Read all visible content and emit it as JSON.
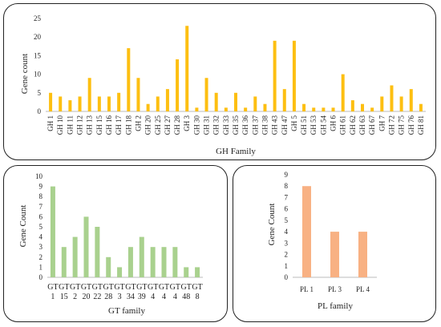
{
  "chart_data": [
    {
      "type": "bar",
      "name": "gh",
      "xlabel": "GH Family",
      "ylabel": "Gene count",
      "ylim": [
        0,
        25
      ],
      "yticks": [
        0,
        5,
        10,
        15,
        20,
        25
      ],
      "color": "#FDBF11",
      "grid": false,
      "categories": [
        "GH 1",
        "GH 10",
        "GH 11",
        "GH 12",
        "GH 13",
        "GH 15",
        "GH 16",
        "GH 17",
        "GH 18",
        "GH 2",
        "GH 20",
        "GH 25",
        "GH 27",
        "GH 28",
        "GH 3",
        "GH 30",
        "GH 31",
        "GH 32",
        "GH 33",
        "GH 35",
        "GH 36",
        "GH 37",
        "GH 38",
        "GH 43",
        "GH 47",
        "GH 5",
        "GH 51",
        "GH 53",
        "GH 54",
        "GH 6",
        "GH 61",
        "GH 62",
        "GH 63",
        "GH 67",
        "GH 7",
        "GH 72",
        "GH 75",
        "GH 76",
        "GH 81"
      ],
      "values": [
        5,
        4,
        3,
        4,
        9,
        4,
        4,
        5,
        17,
        9,
        2,
        4,
        6,
        14,
        23,
        1,
        9,
        5,
        1,
        5,
        1,
        4,
        2,
        19,
        6,
        19,
        2,
        1,
        1,
        1,
        10,
        3,
        2,
        1,
        4,
        7,
        4,
        6,
        2
      ]
    },
    {
      "type": "bar",
      "name": "gt",
      "xlabel": "GT family",
      "ylabel": "Gene Count",
      "ylim": [
        0,
        10
      ],
      "yticks": [
        0,
        1,
        2,
        3,
        4,
        5,
        6,
        7,
        8,
        9,
        10
      ],
      "color": "#A9D18E",
      "grid": false,
      "categories": [
        [
          "GT",
          "1"
        ],
        [
          "GT",
          "15"
        ],
        [
          "GT",
          "2"
        ],
        [
          "GT",
          "20"
        ],
        [
          "GT",
          "22"
        ],
        [
          "GT",
          "28"
        ],
        [
          "GT",
          "3"
        ],
        [
          "GT",
          "34"
        ],
        [
          "GT",
          "39"
        ],
        [
          "GT",
          "4"
        ],
        [
          "GT",
          "4"
        ],
        [
          "GT",
          "4"
        ],
        [
          "GT",
          "48"
        ],
        [
          "GT",
          "8"
        ]
      ],
      "values": [
        9,
        3,
        4,
        6,
        5,
        2,
        1,
        3,
        4,
        3,
        3,
        3,
        1,
        1
      ]
    },
    {
      "type": "bar",
      "name": "pl",
      "xlabel": "PL family",
      "ylabel": "Gene Count",
      "ylim": [
        0,
        9
      ],
      "yticks": [
        0,
        1,
        2,
        3,
        4,
        5,
        6,
        7,
        8,
        9
      ],
      "color": "#F8B183",
      "grid": false,
      "categories": [
        "PL 1",
        "PL 3",
        "PL 4"
      ],
      "values": [
        8,
        4,
        4
      ]
    }
  ]
}
